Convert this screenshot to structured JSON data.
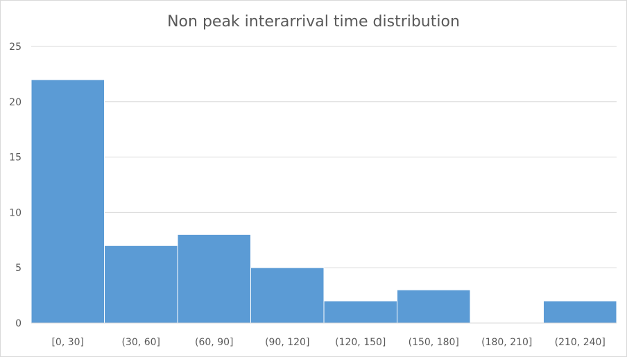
{
  "chart_data": {
    "type": "bar",
    "title": "Non peak interarrival time distribution",
    "xlabel": "",
    "ylabel": "",
    "categories": [
      "[0, 30]",
      "(30, 60]",
      "(60, 90]",
      "(90, 120]",
      "(120, 150]",
      "(150, 180]",
      "(180, 210]",
      "(210, 240]"
    ],
    "values": [
      22,
      7,
      8,
      5,
      2,
      3,
      0,
      2
    ],
    "ylim": [
      0,
      25
    ],
    "yticks": [
      0,
      5,
      10,
      15,
      20,
      25
    ],
    "grid": true,
    "legend": "none",
    "bar_color": "#5b9bd5"
  }
}
